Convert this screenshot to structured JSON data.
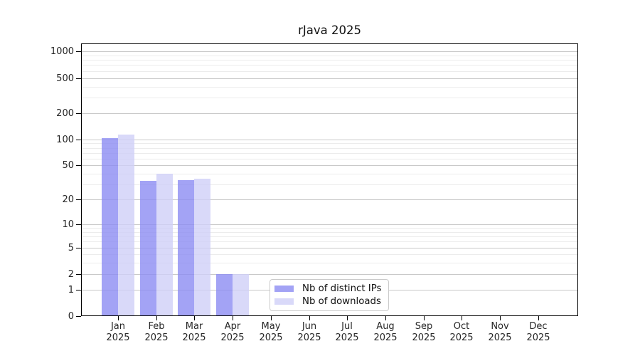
{
  "chart_data": {
    "type": "bar",
    "title": "rJava 2025",
    "categories": [
      "Jan 2025",
      "Feb 2025",
      "Mar 2025",
      "Apr 2025",
      "May 2025",
      "Jun 2025",
      "Jul 2025",
      "Aug 2025",
      "Sep 2025",
      "Oct 2025",
      "Nov 2025",
      "Dec 2025"
    ],
    "series": [
      {
        "name": "Nb of distinct IPs",
        "color": "#8c8cf2",
        "alpha": 0.8,
        "values": [
          103,
          33,
          34,
          2,
          0,
          0,
          0,
          0,
          0,
          0,
          0,
          0
        ]
      },
      {
        "name": "Nb of downloads",
        "color": "#d0d0f7",
        "alpha": 0.8,
        "values": [
          114,
          40,
          35,
          2,
          0,
          0,
          0,
          0,
          0,
          0,
          0,
          0
        ]
      }
    ],
    "xlabel": "",
    "ylabel": "",
    "y_scale": "log1p",
    "y_ticks": [
      0,
      1,
      2,
      5,
      10,
      20,
      50,
      100,
      200,
      500,
      1000
    ],
    "y_minor_gridlines": [
      3,
      4,
      6,
      7,
      8,
      9,
      30,
      40,
      60,
      70,
      80,
      90,
      300,
      400,
      600,
      700,
      800,
      900
    ],
    "ylim": [
      0,
      1230
    ],
    "grid": "on",
    "legend_position": "inside-bottom-center",
    "colors": {
      "axis": "#000000",
      "tick_text": "#262626",
      "grid_major": "#c9c9c9",
      "grid_minor": "#ececec",
      "background": "#ffffff"
    }
  }
}
